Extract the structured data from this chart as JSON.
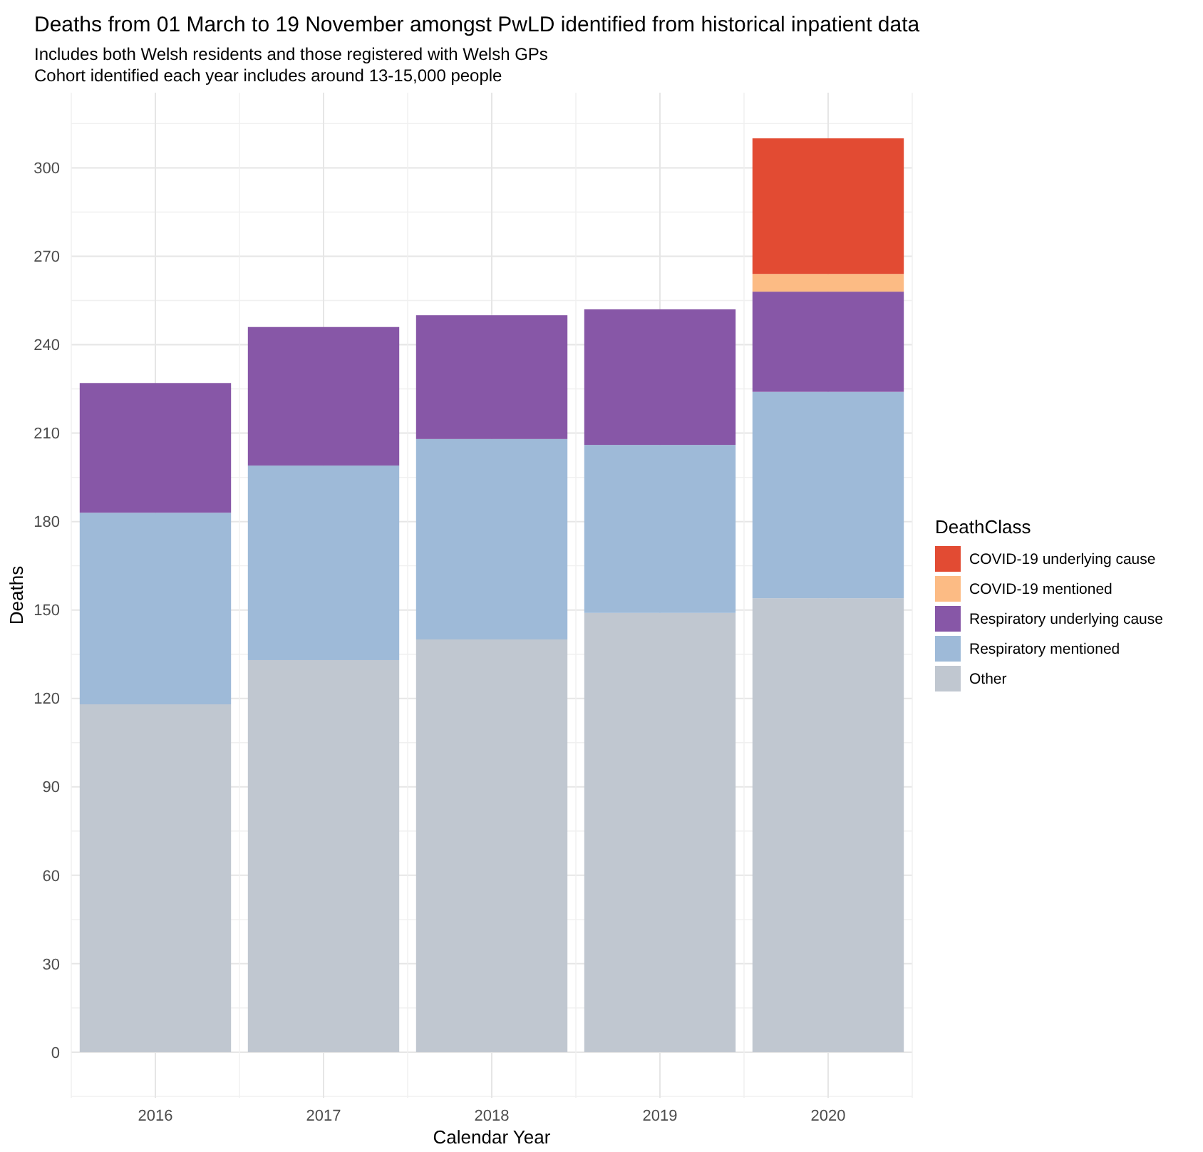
{
  "chart_data": {
    "type": "bar",
    "title": "Deaths from 01 March to 19 November amongst PwLD identified from historical inpatient data",
    "subtitle": "Includes both Welsh residents and those registered with Welsh GPs\nCohort identified each year includes around 13-15,000 people",
    "xlabel": "Calendar Year",
    "ylabel": "Deaths",
    "legend_title": "DeathClass",
    "categories": [
      "2016",
      "2017",
      "2018",
      "2019",
      "2020"
    ],
    "stacked": true,
    "ylim": [
      -15.5,
      325.5
    ],
    "yticks": [
      0,
      30,
      60,
      90,
      120,
      150,
      180,
      210,
      240,
      270,
      300
    ],
    "grid": true,
    "legend": "right",
    "series": [
      {
        "name": "Other",
        "color": "#c0c7d0",
        "values": [
          118,
          133,
          140,
          149,
          154
        ]
      },
      {
        "name": "Respiratory mentioned",
        "color": "#9ebad8",
        "values": [
          65,
          66,
          68,
          57,
          70
        ]
      },
      {
        "name": "Respiratory underlying cause",
        "color": "#8757a7",
        "values": [
          44,
          47,
          42,
          46,
          34
        ]
      },
      {
        "name": "COVID-19 mentioned",
        "color": "#fcbb84",
        "values": [
          0,
          0,
          0,
          0,
          6
        ]
      },
      {
        "name": "COVID-19 underlying cause",
        "color": "#e24b33",
        "values": [
          0,
          0,
          0,
          0,
          46
        ]
      }
    ]
  }
}
